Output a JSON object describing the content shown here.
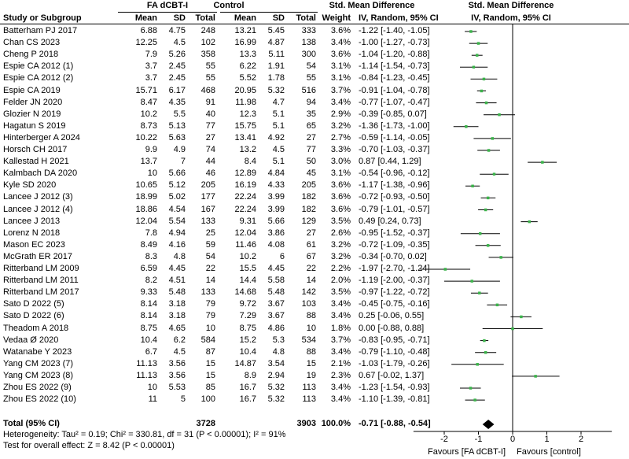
{
  "header": {
    "group1": "FA dCBT-I",
    "group2": "Control",
    "effect_title": "Std. Mean Difference",
    "plot_title": "Std. Mean Difference",
    "col_study": "Study or Subgroup",
    "col_mean1": "Mean",
    "col_sd1": "SD",
    "col_total1": "Total",
    "col_mean2": "Mean",
    "col_sd2": "SD",
    "col_total2": "Total",
    "col_weight": "Weight",
    "col_method": "IV, Random, 95% CI",
    "plot_method": "IV, Random, 95% CI"
  },
  "total": {
    "label": "Total (95% CI)",
    "total1": "3728",
    "total2": "3903",
    "weight": "100.0%",
    "ci_text": "-0.71 [-0.88, -0.54]"
  },
  "footer": {
    "heterogeneity": "Heterogeneity: Tau² = 0.19; Chi² = 330.81, df = 31 (P < 0.00001); I² = 91%",
    "overall": "Test for overall effect: Z = 8.42 (P < 0.00001)"
  },
  "colors": {
    "marker": "#3cb44b",
    "diamond": "#000000"
  },
  "chart_data": {
    "type": "forest",
    "xlim": [
      -3,
      3
    ],
    "xticks": [
      "-2",
      "-1",
      "0",
      "1",
      "2"
    ],
    "xlabel_left": "Favours [FA dCBT-I]",
    "xlabel_right": "Favours [control]",
    "pooled": {
      "smd": -0.71,
      "lo": -0.88,
      "hi": -0.54
    },
    "studies": [
      {
        "name": "Batterham PJ 2017",
        "m1": "6.88",
        "sd1": "4.75",
        "n1": "248",
        "m2": "13.21",
        "sd2": "5.45",
        "n2": "333",
        "w": "3.6%",
        "ci": "-1.22 [-1.40, -1.05]",
        "smd": -1.22,
        "lo": -1.4,
        "hi": -1.05
      },
      {
        "name": "Chan CS 2023",
        "m1": "12.25",
        "sd1": "4.5",
        "n1": "102",
        "m2": "16.99",
        "sd2": "4.87",
        "n2": "138",
        "w": "3.4%",
        "ci": "-1.00 [-1.27, -0.73]",
        "smd": -1.0,
        "lo": -1.27,
        "hi": -0.73
      },
      {
        "name": "Cheng P 2018",
        "m1": "7.9",
        "sd1": "5.26",
        "n1": "358",
        "m2": "13.3",
        "sd2": "5.11",
        "n2": "300",
        "w": "3.6%",
        "ci": "-1.04 [-1.20, -0.88]",
        "smd": -1.04,
        "lo": -1.2,
        "hi": -0.88
      },
      {
        "name": "Espie CA 2012 (1)",
        "m1": "3.7",
        "sd1": "2.45",
        "n1": "55",
        "m2": "6.22",
        "sd2": "1.91",
        "n2": "54",
        "w": "3.1%",
        "ci": "-1.14 [-1.54, -0.73]",
        "smd": -1.14,
        "lo": -1.54,
        "hi": -0.73
      },
      {
        "name": "Espie CA 2012 (2)",
        "m1": "3.7",
        "sd1": "2.45",
        "n1": "55",
        "m2": "5.52",
        "sd2": "1.78",
        "n2": "55",
        "w": "3.1%",
        "ci": "-0.84 [-1.23, -0.45]",
        "smd": -0.84,
        "lo": -1.23,
        "hi": -0.45
      },
      {
        "name": "Espie CA 2019",
        "m1": "15.71",
        "sd1": "6.17",
        "n1": "468",
        "m2": "20.95",
        "sd2": "5.32",
        "n2": "516",
        "w": "3.7%",
        "ci": "-0.91 [-1.04, -0.78]",
        "smd": -0.91,
        "lo": -1.04,
        "hi": -0.78
      },
      {
        "name": "Felder JN 2020",
        "m1": "8.47",
        "sd1": "4.35",
        "n1": "91",
        "m2": "11.98",
        "sd2": "4.7",
        "n2": "94",
        "w": "3.4%",
        "ci": "-0.77 [-1.07, -0.47]",
        "smd": -0.77,
        "lo": -1.07,
        "hi": -0.47
      },
      {
        "name": "Glozier N 2019",
        "m1": "10.2",
        "sd1": "5.5",
        "n1": "40",
        "m2": "12.3",
        "sd2": "5.1",
        "n2": "35",
        "w": "2.9%",
        "ci": "-0.39 [-0.85, 0.07]",
        "smd": -0.39,
        "lo": -0.85,
        "hi": 0.07
      },
      {
        "name": "Hagatun S 2019",
        "m1": "8.73",
        "sd1": "5.13",
        "n1": "77",
        "m2": "15.75",
        "sd2": "5.1",
        "n2": "65",
        "w": "3.2%",
        "ci": "-1.36 [-1.73, -1.00]",
        "smd": -1.36,
        "lo": -1.73,
        "hi": -1.0
      },
      {
        "name": "Hinterberger A 2024",
        "m1": "10.22",
        "sd1": "5.63",
        "n1": "27",
        "m2": "13.41",
        "sd2": "4.92",
        "n2": "27",
        "w": "2.7%",
        "ci": "-0.59 [-1.14, -0.05]",
        "smd": -0.59,
        "lo": -1.14,
        "hi": -0.05
      },
      {
        "name": "Horsch CH 2017",
        "m1": "9.9",
        "sd1": "4.9",
        "n1": "74",
        "m2": "13.2",
        "sd2": "4.5",
        "n2": "77",
        "w": "3.3%",
        "ci": "-0.70 [-1.03, -0.37]",
        "smd": -0.7,
        "lo": -1.03,
        "hi": -0.37
      },
      {
        "name": "Kallestad H 2021",
        "m1": "13.7",
        "sd1": "7",
        "n1": "44",
        "m2": "8.4",
        "sd2": "5.1",
        "n2": "50",
        "w": "3.0%",
        "ci": "0.87 [0.44, 1.29]",
        "smd": 0.87,
        "lo": 0.44,
        "hi": 1.29
      },
      {
        "name": "Kalmbach DA 2020",
        "m1": "10",
        "sd1": "5.66",
        "n1": "46",
        "m2": "12.89",
        "sd2": "4.84",
        "n2": "45",
        "w": "3.1%",
        "ci": "-0.54 [-0.96, -0.12]",
        "smd": -0.54,
        "lo": -0.96,
        "hi": -0.12
      },
      {
        "name": "Kyle SD 2020",
        "m1": "10.65",
        "sd1": "5.12",
        "n1": "205",
        "m2": "16.19",
        "sd2": "4.33",
        "n2": "205",
        "w": "3.6%",
        "ci": "-1.17 [-1.38, -0.96]",
        "smd": -1.17,
        "lo": -1.38,
        "hi": -0.96
      },
      {
        "name": "Lancee J 2012 (3)",
        "m1": "18.99",
        "sd1": "5.02",
        "n1": "177",
        "m2": "22.24",
        "sd2": "3.99",
        "n2": "182",
        "w": "3.6%",
        "ci": "-0.72 [-0.93, -0.50]",
        "smd": -0.72,
        "lo": -0.93,
        "hi": -0.5
      },
      {
        "name": "Lancee J 2012 (4)",
        "m1": "18.86",
        "sd1": "4.54",
        "n1": "167",
        "m2": "22.24",
        "sd2": "3.99",
        "n2": "182",
        "w": "3.6%",
        "ci": "-0.79 [-1.01, -0.57]",
        "smd": -0.79,
        "lo": -1.01,
        "hi": -0.57
      },
      {
        "name": "Lancee J 2013",
        "m1": "12.04",
        "sd1": "5.54",
        "n1": "133",
        "m2": "9.31",
        "sd2": "5.66",
        "n2": "129",
        "w": "3.5%",
        "ci": "0.49 [0.24, 0.73]",
        "smd": 0.49,
        "lo": 0.24,
        "hi": 0.73
      },
      {
        "name": "Lorenz N 2018",
        "m1": "7.8",
        "sd1": "4.94",
        "n1": "25",
        "m2": "12.04",
        "sd2": "3.86",
        "n2": "27",
        "w": "2.6%",
        "ci": "-0.95 [-1.52, -0.37]",
        "smd": -0.95,
        "lo": -1.52,
        "hi": -0.37
      },
      {
        "name": "Mason EC 2023",
        "m1": "8.49",
        "sd1": "4.16",
        "n1": "59",
        "m2": "11.46",
        "sd2": "4.08",
        "n2": "61",
        "w": "3.2%",
        "ci": "-0.72 [-1.09, -0.35]",
        "smd": -0.72,
        "lo": -1.09,
        "hi": -0.35
      },
      {
        "name": "McGrath ER 2017",
        "m1": "8.3",
        "sd1": "4.8",
        "n1": "54",
        "m2": "10.2",
        "sd2": "6",
        "n2": "67",
        "w": "3.2%",
        "ci": "-0.34 [-0.70, 0.02]",
        "smd": -0.34,
        "lo": -0.7,
        "hi": 0.02
      },
      {
        "name": "Ritterband LM 2009",
        "m1": "6.59",
        "sd1": "4.45",
        "n1": "22",
        "m2": "15.5",
        "sd2": "4.45",
        "n2": "22",
        "w": "2.2%",
        "ci": "-1.97 [-2.70, -1.24]",
        "smd": -1.97,
        "lo": -2.7,
        "hi": -1.24
      },
      {
        "name": "Ritterband LM 2011",
        "m1": "8.2",
        "sd1": "4.51",
        "n1": "14",
        "m2": "14.4",
        "sd2": "5.58",
        "n2": "14",
        "w": "2.0%",
        "ci": "-1.19 [-2.00, -0.37]",
        "smd": -1.19,
        "lo": -2.0,
        "hi": -0.37
      },
      {
        "name": "Ritterband LM 2017",
        "m1": "9.33",
        "sd1": "5.48",
        "n1": "133",
        "m2": "14.68",
        "sd2": "5.48",
        "n2": "142",
        "w": "3.5%",
        "ci": "-0.97 [-1.22, -0.72]",
        "smd": -0.97,
        "lo": -1.22,
        "hi": -0.72
      },
      {
        "name": "Sato D 2022 (5)",
        "m1": "8.14",
        "sd1": "3.18",
        "n1": "79",
        "m2": "9.72",
        "sd2": "3.67",
        "n2": "103",
        "w": "3.4%",
        "ci": "-0.45 [-0.75, -0.16]",
        "smd": -0.45,
        "lo": -0.75,
        "hi": -0.16
      },
      {
        "name": "Sato D 2022 (6)",
        "m1": "8.14",
        "sd1": "3.18",
        "n1": "79",
        "m2": "7.29",
        "sd2": "3.67",
        "n2": "88",
        "w": "3.4%",
        "ci": "0.25 [-0.06, 0.55]",
        "smd": 0.25,
        "lo": -0.06,
        "hi": 0.55
      },
      {
        "name": "Theadom A 2018",
        "m1": "8.75",
        "sd1": "4.65",
        "n1": "10",
        "m2": "8.75",
        "sd2": "4.86",
        "n2": "10",
        "w": "1.8%",
        "ci": "0.00 [-0.88, 0.88]",
        "smd": 0.0,
        "lo": -0.88,
        "hi": 0.88
      },
      {
        "name": "Vedaa Ø 2020",
        "m1": "10.4",
        "sd1": "6.2",
        "n1": "584",
        "m2": "15.2",
        "sd2": "5.3",
        "n2": "534",
        "w": "3.7%",
        "ci": "-0.83 [-0.95, -0.71]",
        "smd": -0.83,
        "lo": -0.95,
        "hi": -0.71
      },
      {
        "name": "Watanabe Y 2023",
        "m1": "6.7",
        "sd1": "4.5",
        "n1": "87",
        "m2": "10.4",
        "sd2": "4.8",
        "n2": "88",
        "w": "3.4%",
        "ci": "-0.79 [-1.10, -0.48]",
        "smd": -0.79,
        "lo": -1.1,
        "hi": -0.48
      },
      {
        "name": "Yang CM 2023 (7)",
        "m1": "11.13",
        "sd1": "3.56",
        "n1": "15",
        "m2": "14.87",
        "sd2": "3.54",
        "n2": "15",
        "w": "2.1%",
        "ci": "-1.03 [-1.79, -0.26]",
        "smd": -1.03,
        "lo": -1.79,
        "hi": -0.26
      },
      {
        "name": "Yang CM 2023 (8)",
        "m1": "11.13",
        "sd1": "3.56",
        "n1": "15",
        "m2": "8.9",
        "sd2": "2.94",
        "n2": "19",
        "w": "2.3%",
        "ci": "0.67 [-0.02, 1.37]",
        "smd": 0.67,
        "lo": -0.02,
        "hi": 1.37
      },
      {
        "name": "Zhou ES 2022 (9)",
        "m1": "10",
        "sd1": "5.53",
        "n1": "85",
        "m2": "16.7",
        "sd2": "5.32",
        "n2": "113",
        "w": "3.4%",
        "ci": "-1.23 [-1.54, -0.93]",
        "smd": -1.23,
        "lo": -1.54,
        "hi": -0.93
      },
      {
        "name": "Zhou ES 2022 (10)",
        "m1": "11",
        "sd1": "5",
        "n1": "100",
        "m2": "16.7",
        "sd2": "5.32",
        "n2": "113",
        "w": "3.4%",
        "ci": "-1.10 [-1.39, -0.81]",
        "smd": -1.1,
        "lo": -1.39,
        "hi": -0.81
      }
    ]
  }
}
